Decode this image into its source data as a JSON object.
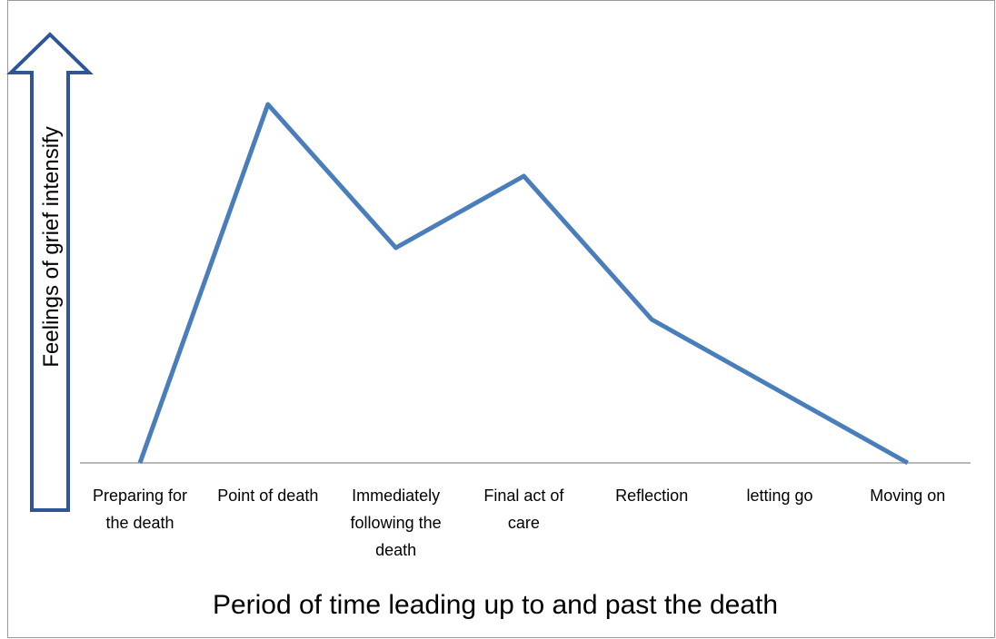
{
  "chart_data": {
    "type": "line",
    "y_label": "Feelings of grief intensify",
    "x_label": "Period of time leading up to and past the death",
    "categories": [
      "Preparing for the death",
      "Point of death",
      "Immediately following the death",
      "Final act of care",
      "Reflection",
      "letting go",
      "Moving on"
    ],
    "values": [
      0,
      100,
      60,
      80,
      40,
      20,
      0
    ],
    "color": "#4a7ebb"
  }
}
